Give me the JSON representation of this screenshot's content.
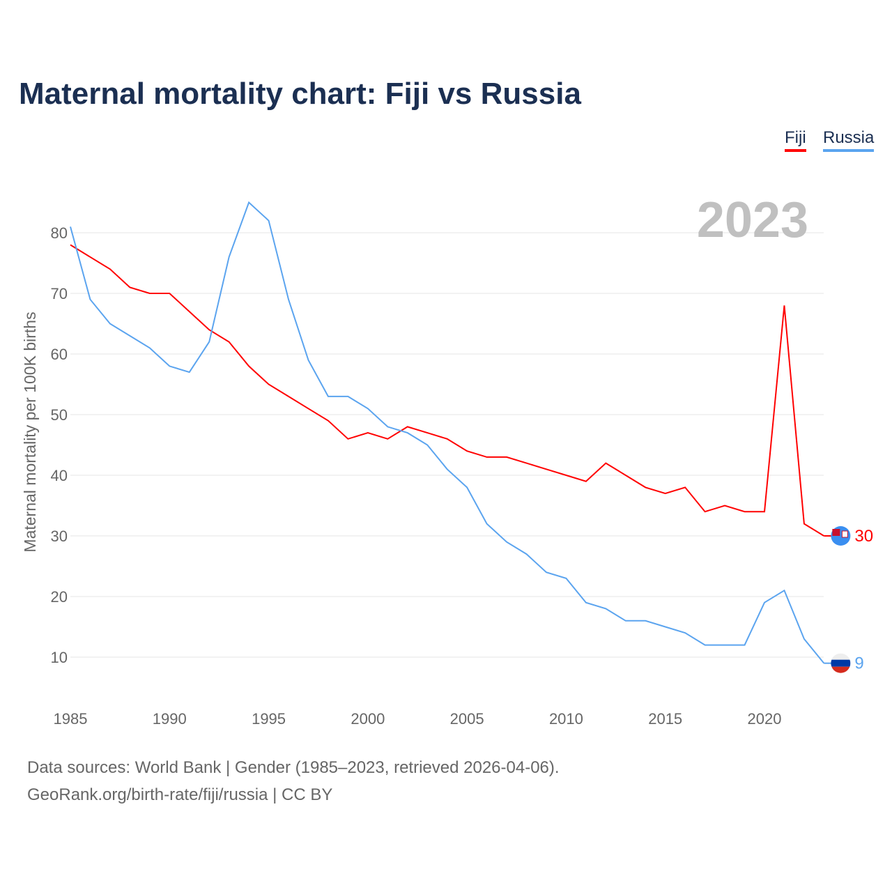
{
  "title": "Maternal mortality chart: Fiji vs Russia",
  "year_label": "2023",
  "sources": [
    "Data sources: World Bank | Gender (1985–2023, retrieved 2026-04-06).",
    "GeoRank.org/birth-rate/fiji/russia | CC BY"
  ],
  "chart_data": {
    "type": "line",
    "title": "Maternal mortality chart: Fiji vs Russia",
    "xlabel": "",
    "ylabel": "Maternal mortality per 100K births",
    "x": [
      1985,
      1986,
      1987,
      1988,
      1989,
      1990,
      1991,
      1992,
      1993,
      1994,
      1995,
      1996,
      1997,
      1998,
      1999,
      2000,
      2001,
      2002,
      2003,
      2004,
      2005,
      2006,
      2007,
      2008,
      2009,
      2010,
      2011,
      2012,
      2013,
      2014,
      2015,
      2016,
      2017,
      2018,
      2019,
      2020,
      2021,
      2022,
      2023
    ],
    "xticks": [
      1985,
      1990,
      1995,
      2000,
      2005,
      2010,
      2015,
      2020
    ],
    "yticks": [
      10,
      20,
      30,
      40,
      50,
      60,
      70,
      80
    ],
    "xlim": [
      1985,
      2023
    ],
    "ylim": [
      3,
      90
    ],
    "grid": true,
    "legend": "top-right",
    "series": [
      {
        "name": "Fiji",
        "color": "#ff0000",
        "end_label": "30",
        "values": [
          78,
          76,
          74,
          71,
          70,
          70,
          67,
          64,
          62,
          58,
          55,
          53,
          51,
          49,
          46,
          47,
          46,
          48,
          47,
          46,
          44,
          43,
          43,
          42,
          41,
          40,
          39,
          42,
          40,
          38,
          37,
          38,
          34,
          35,
          34,
          34,
          68,
          32,
          30
        ]
      },
      {
        "name": "Russia",
        "color": "#5ba4ef",
        "end_label": "9",
        "values": [
          81,
          69,
          65,
          63,
          61,
          58,
          57,
          62,
          76,
          85,
          82,
          69,
          59,
          53,
          53,
          51,
          48,
          47,
          45,
          41,
          38,
          32,
          29,
          27,
          24,
          23,
          19,
          18,
          16,
          16,
          15,
          14,
          12,
          12,
          12,
          19,
          21,
          13,
          9
        ]
      }
    ]
  }
}
